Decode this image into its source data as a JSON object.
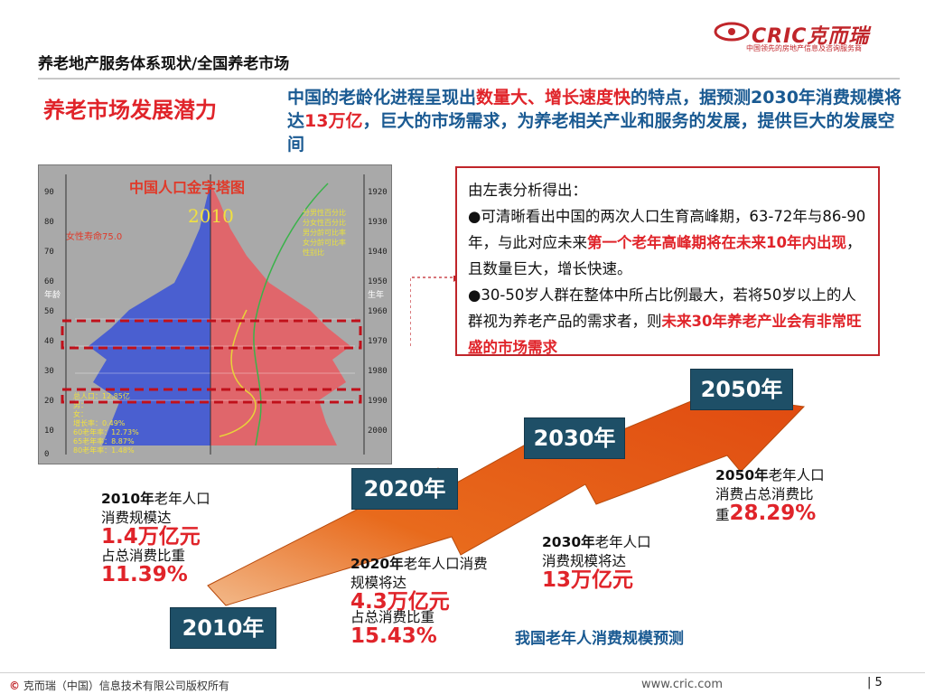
{
  "header": {
    "title": "养老地产服务体系现状/全国养老市场",
    "logo_text": "CRIC克而瑞",
    "logo_sub": "中国领先的房地产信息及咨询服务商"
  },
  "section_title": "养老市场发展潜力",
  "intro": {
    "part1": "中国的老龄化进程呈现出",
    "hl1": "数量大、增长速度快",
    "part2": "的特点，据预测2030年消费规模将达",
    "hl2": "13万亿",
    "part3": "，巨大的市场需求，为养老相关产业和服务的发展，提供巨大的发展空间"
  },
  "pyramid": {
    "title": "中国人口金字塔图",
    "year": "2010",
    "left_axis": [
      "90",
      "80",
      "70",
      "60",
      "50",
      "40",
      "30",
      "20",
      "10",
      "0"
    ],
    "right_axis": [
      "1920",
      "1930",
      "1940",
      "1950",
      "1960",
      "1970",
      "1980",
      "1990",
      "2000"
    ],
    "left_axis_label": "年龄",
    "right_axis_label": "生年",
    "note": "女性寿命75.0",
    "legend": [
      "分男性百分比",
      "分女性百分比",
      "男分龄可比率",
      "女分龄可比率",
      "性别比"
    ],
    "stats": [
      "总人口：12.85亿",
      "男：",
      "女：",
      "增长率：0.49%",
      "60老年率：12.73%",
      "65老年率：8.87%",
      "80老年率：1.48%"
    ]
  },
  "analysis": {
    "heading": "由左表分析得出：",
    "p1_a": "●可清晰看出中国的两次人口生育高峰期，63-72年与86-90年，与此对应未来",
    "p1_red": "第一个老年高峰期将在未来10年内出现",
    "p1_b": "，且数量巨大，增长快速。",
    "p2_a": "●30-50岁人群在整体中所占比例最大，若将50岁以上的人群视为养老产品的需求者，则",
    "p2_red": "未来30年养老产业会有非常旺盛的市场需求"
  },
  "years": {
    "y2010": "2010年",
    "y2020": "2020年",
    "y2030": "2030年",
    "y2050": "2050年"
  },
  "info2010": {
    "year": "2010年",
    "line1": "老年人口",
    "line2": "消费规模达",
    "value": "1.4万亿元",
    "line3": "占总消费比重",
    "ratio": "11.39%"
  },
  "info2020": {
    "year": "2020年",
    "line1": "老年人口消费",
    "line2": "规模将达",
    "value": "4.3万亿元",
    "line3": "占总消费比重",
    "ratio": "15.43%"
  },
  "info2030": {
    "year": "2030年",
    "line1": "老年人口",
    "line2": "消费规模将达",
    "value": "13万亿元"
  },
  "info2050": {
    "year": "2050年",
    "line1": "老年人口",
    "line2": "消费占总消费比",
    "line3": "重",
    "ratio": "28.29%"
  },
  "forecast_caption": "我国老年人消费规模预测",
  "footer": {
    "copyright_symbol": "©",
    "copyright": "克而瑞（中国）信息技术有限公司版权所有",
    "url": "www.cric.com",
    "page": "5"
  },
  "colors": {
    "brand_red": "#e0242a",
    "brand_blue": "#1a5a92",
    "year_box": "#1e4f67",
    "arrow_orange": "#e8601c"
  }
}
